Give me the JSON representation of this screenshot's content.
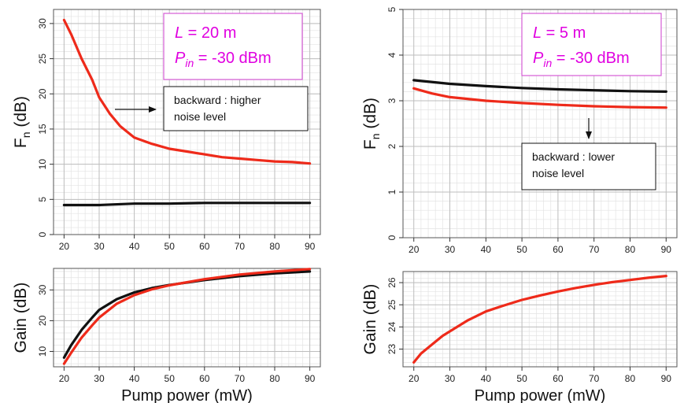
{
  "chart_data": [
    {
      "type": "line",
      "panel": "noise-figure-20m",
      "ylabel": "F_n (dB)",
      "xlim": [
        17,
        93
      ],
      "ylim": [
        0,
        32
      ],
      "xticks": [
        20,
        30,
        40,
        50,
        60,
        70,
        80,
        90
      ],
      "yticks": [
        0,
        5,
        10,
        15,
        20,
        25,
        30
      ],
      "annotation": {
        "L_text": "L",
        "L_value": " = 20 m",
        "P_text": "P",
        "P_sub": "in",
        "P_value": " = -30 dBm"
      },
      "note": [
        "backward : higher",
        "noise level"
      ],
      "series": [
        {
          "color": "#ee2a1a",
          "x": [
            20,
            22,
            25,
            28,
            30,
            33,
            36,
            40,
            45,
            50,
            55,
            60,
            65,
            70,
            75,
            80,
            85,
            90
          ],
          "y": [
            30.5,
            28.5,
            25.0,
            22.0,
            19.5,
            17.2,
            15.4,
            13.8,
            12.9,
            12.2,
            11.8,
            11.4,
            11.0,
            10.8,
            10.6,
            10.4,
            10.3,
            10.1
          ]
        },
        {
          "color": "#111111",
          "x": [
            20,
            30,
            40,
            50,
            60,
            70,
            80,
            90
          ],
          "y": [
            4.2,
            4.2,
            4.4,
            4.4,
            4.5,
            4.5,
            4.5,
            4.5
          ]
        }
      ]
    },
    {
      "type": "line",
      "panel": "noise-figure-5m",
      "ylabel": "F_n (dB)",
      "xlim": [
        17,
        93
      ],
      "ylim": [
        0,
        5
      ],
      "xticks": [
        20,
        30,
        40,
        50,
        60,
        70,
        80,
        90
      ],
      "yticks": [
        0,
        1,
        2,
        3,
        4,
        5
      ],
      "annotation": {
        "L_text": "L",
        "L_value": " = 5 m",
        "P_text": "P",
        "P_sub": "in",
        "P_value": " = -30 dBm"
      },
      "note": [
        "backward : lower",
        "noise level"
      ],
      "series": [
        {
          "color": "#111111",
          "x": [
            20,
            30,
            40,
            50,
            60,
            70,
            80,
            90
          ],
          "y": [
            3.45,
            3.37,
            3.32,
            3.28,
            3.25,
            3.23,
            3.21,
            3.2
          ]
        },
        {
          "color": "#ee2a1a",
          "x": [
            20,
            25,
            30,
            40,
            50,
            60,
            70,
            80,
            90
          ],
          "y": [
            3.27,
            3.16,
            3.08,
            3.0,
            2.95,
            2.91,
            2.88,
            2.86,
            2.85
          ]
        }
      ]
    },
    {
      "type": "line",
      "panel": "gain-20m",
      "ylabel": "Gain (dB)",
      "xlabel": "Pump power (mW)",
      "xlim": [
        17,
        93
      ],
      "ylim": [
        5,
        37
      ],
      "xticks": [
        20,
        30,
        40,
        50,
        60,
        70,
        80,
        90
      ],
      "yticks": [
        10,
        20,
        30
      ],
      "series": [
        {
          "color": "#111111",
          "x": [
            20,
            22,
            25,
            28,
            30,
            35,
            40,
            45,
            50,
            60,
            70,
            80,
            90
          ],
          "y": [
            8.0,
            12.0,
            17.0,
            21.0,
            23.5,
            27.0,
            29.2,
            30.6,
            31.6,
            33.2,
            34.5,
            35.4,
            36.0
          ]
        },
        {
          "color": "#ee2a1a",
          "x": [
            20,
            22,
            25,
            28,
            30,
            35,
            40,
            45,
            50,
            60,
            70,
            80,
            90
          ],
          "y": [
            6.0,
            9.5,
            14.5,
            18.5,
            21.0,
            25.5,
            28.3,
            30.2,
            31.5,
            33.5,
            35.0,
            36.0,
            36.8
          ]
        }
      ]
    },
    {
      "type": "line",
      "panel": "gain-5m",
      "ylabel": "Gain (dB)",
      "xlabel": "Pump power (mW)",
      "xlim": [
        17,
        93
      ],
      "ylim": [
        22.2,
        26.5
      ],
      "xticks": [
        20,
        30,
        40,
        50,
        60,
        70,
        80,
        90
      ],
      "yticks": [
        23,
        24,
        25,
        26
      ],
      "series": [
        {
          "color": "#ee2a1a",
          "x": [
            20,
            22,
            25,
            28,
            30,
            35,
            40,
            45,
            50,
            55,
            60,
            65,
            70,
            75,
            80,
            85,
            90
          ],
          "y": [
            22.4,
            22.8,
            23.2,
            23.6,
            23.8,
            24.3,
            24.7,
            24.97,
            25.22,
            25.42,
            25.6,
            25.76,
            25.9,
            26.02,
            26.12,
            26.22,
            26.3
          ]
        }
      ]
    }
  ]
}
